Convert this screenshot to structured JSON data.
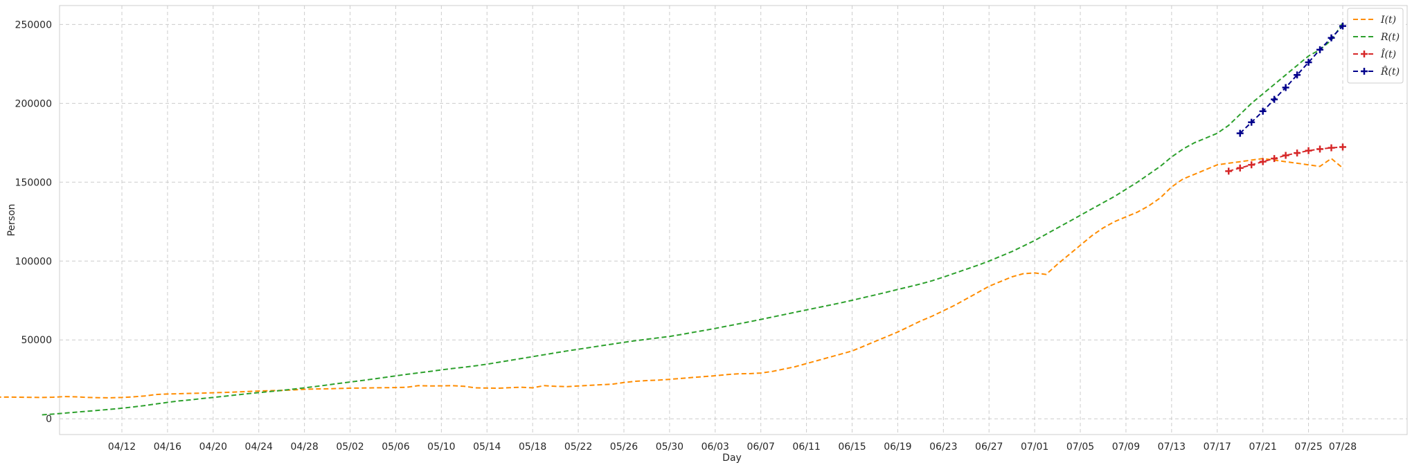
{
  "chart_data": {
    "type": "line",
    "xlabel": "Day",
    "ylabel": "Person",
    "ylim": [
      -10000,
      262000
    ],
    "yticks": [
      0,
      50000,
      100000,
      150000,
      200000,
      250000
    ],
    "xticks": [
      "04/12",
      "04/16",
      "04/20",
      "04/24",
      "04/28",
      "05/02",
      "05/06",
      "05/10",
      "05/14",
      "05/18",
      "05/22",
      "05/26",
      "05/30",
      "06/03",
      "06/07",
      "06/11",
      "06/15",
      "06/19",
      "06/23",
      "06/27",
      "07/01",
      "07/05",
      "07/09",
      "07/13",
      "07/17",
      "07/21",
      "07/25",
      "07/28"
    ],
    "x_start": "04/12",
    "x_end": "07/28",
    "grid": true,
    "legend_position": "top-right",
    "series": [
      {
        "name": "I(t)",
        "color": "#ff8c00",
        "style": "dashed",
        "values": [
          11300,
          11700,
          12200,
          12600,
          13100,
          13500,
          13700,
          13800,
          13700,
          13600,
          13500,
          13700,
          14100,
          13900,
          13500,
          13400,
          13300,
          13500,
          13900,
          14500,
          15400,
          15700,
          15900,
          16100,
          16300,
          16500,
          16700,
          17000,
          17300,
          17600,
          17800,
          18000,
          18300,
          18700,
          18900,
          19000,
          19200,
          19400,
          19500,
          19600,
          19700,
          19800,
          20000,
          21000,
          20800,
          20900,
          21000,
          20600,
          19600,
          19500,
          19400,
          19700,
          20000,
          19600,
          21000,
          20600,
          20400,
          20800,
          21200,
          21600,
          22000,
          23000,
          23800,
          24200,
          24500,
          25000,
          25600,
          26200,
          26700,
          27300,
          28000,
          28500,
          28600,
          29000,
          30000,
          31500,
          33000,
          35000,
          37000,
          39000,
          41000,
          43000,
          46000,
          49000,
          52000,
          55000,
          58500,
          62000,
          65000,
          68500,
          72000,
          76000,
          80000,
          84000,
          87000,
          90000,
          92000,
          92500,
          91500,
          98000,
          104000,
          110000,
          116000,
          121000,
          125000,
          128000,
          131000,
          135000,
          140000,
          147000,
          152000,
          155000,
          158000,
          161000,
          162000,
          163000,
          164000,
          165000,
          164000,
          163000,
          162000,
          161000,
          160000,
          165000,
          159000
        ]
      },
      {
        "name": "R(t)",
        "color": "#2ca02c",
        "style": "dashed",
        "values": [
          2500,
          3000,
          3600,
          4200,
          4800,
          5400,
          6000,
          6700,
          7500,
          8400,
          9400,
          10400,
          11300,
          12000,
          12800,
          13500,
          14300,
          15100,
          15900,
          16600,
          17300,
          18000,
          18800,
          19600,
          20500,
          21400,
          22400,
          23300,
          24200,
          25200,
          26200,
          27200,
          28200,
          29100,
          30000,
          31000,
          31900,
          32700,
          33600,
          34600,
          35800,
          37000,
          38200,
          39400,
          40600,
          41800,
          43000,
          44100,
          45200,
          46300,
          47400,
          48500,
          49500,
          50400,
          51300,
          52200,
          53400,
          54700,
          56000,
          57300,
          58700,
          60100,
          61500,
          63000,
          64500,
          66000,
          67500,
          69000,
          70500,
          72000,
          73500,
          75100,
          76800,
          78500,
          80200,
          82000,
          83700,
          85500,
          87500,
          89800,
          92300,
          94800,
          97300,
          100000,
          103000,
          106000,
          109500,
          113000,
          117000,
          121000,
          125000,
          129000,
          133000,
          137000,
          141000,
          145500,
          150000,
          155000,
          160000,
          166000,
          171000,
          175000,
          178000,
          181000,
          186000,
          193000,
          200000,
          206000,
          212000,
          218000,
          224000,
          230000,
          234000,
          240000,
          251000
        ]
      },
      {
        "name": "Î(t)",
        "color": "#d62728",
        "style": "dashed-marker",
        "values": [
          157000,
          159000,
          161000,
          163000,
          165000,
          167000,
          168500,
          170000,
          171000,
          171800,
          172300
        ]
      },
      {
        "name": "R̂(t)",
        "color": "#00008b",
        "style": "dashed-marker",
        "values": [
          181000,
          188000,
          195000,
          202500,
          210000,
          218000,
          226000,
          234000,
          241500,
          249000
        ]
      }
    ]
  }
}
